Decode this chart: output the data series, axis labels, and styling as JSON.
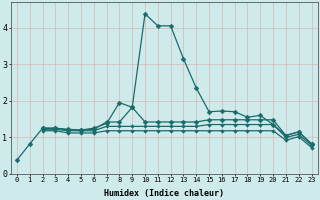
{
  "xlabel": "Humidex (Indice chaleur)",
  "bg_color": "#ceeaea",
  "grid_color": "#d4b8b8",
  "line_color": "#1a6b6b",
  "xlim": [
    -0.5,
    23.5
  ],
  "ylim": [
    0,
    4.7
  ],
  "yticks": [
    0,
    1,
    2,
    3,
    4
  ],
  "xticks": [
    0,
    1,
    2,
    3,
    4,
    5,
    6,
    7,
    8,
    9,
    10,
    11,
    12,
    13,
    14,
    15,
    16,
    17,
    18,
    19,
    20,
    21,
    22,
    23
  ],
  "series1_x": [
    0,
    1,
    2,
    3,
    4,
    5,
    6,
    7,
    8,
    9,
    10,
    11,
    12,
    13,
    14,
    15,
    16,
    17,
    18,
    19,
    20,
    21,
    22,
    23
  ],
  "series1_y": [
    0.38,
    0.82,
    1.25,
    1.25,
    1.2,
    1.2,
    1.25,
    1.38,
    1.95,
    1.82,
    4.38,
    4.05,
    4.05,
    3.15,
    2.35,
    1.7,
    1.72,
    1.7,
    1.55,
    1.6,
    1.35,
    1.05,
    1.15,
    0.82
  ],
  "series2_x": [
    2,
    3,
    4,
    5,
    6,
    7,
    8,
    9,
    10,
    11,
    12,
    13,
    14,
    15,
    16,
    17,
    18,
    19,
    20,
    21,
    22,
    23
  ],
  "series2_y": [
    1.25,
    1.25,
    1.22,
    1.2,
    1.22,
    1.42,
    1.42,
    1.82,
    1.42,
    1.42,
    1.42,
    1.42,
    1.42,
    1.48,
    1.48,
    1.48,
    1.48,
    1.48,
    1.48,
    1.05,
    1.15,
    0.82
  ],
  "series3_x": [
    2,
    3,
    4,
    5,
    6,
    7,
    8,
    9,
    10,
    11,
    12,
    13,
    14,
    15,
    16,
    17,
    18,
    19,
    20,
    21,
    22,
    23
  ],
  "series3_y": [
    1.22,
    1.22,
    1.18,
    1.18,
    1.18,
    1.3,
    1.3,
    1.3,
    1.3,
    1.3,
    1.3,
    1.3,
    1.3,
    1.35,
    1.35,
    1.35,
    1.35,
    1.35,
    1.35,
    1.0,
    1.08,
    0.78
  ],
  "series4_x": [
    2,
    3,
    4,
    5,
    6,
    7,
    8,
    9,
    10,
    11,
    12,
    13,
    14,
    15,
    16,
    17,
    18,
    19,
    20,
    21,
    22,
    23
  ],
  "series4_y": [
    1.18,
    1.18,
    1.12,
    1.12,
    1.12,
    1.18,
    1.18,
    1.18,
    1.18,
    1.18,
    1.18,
    1.18,
    1.18,
    1.18,
    1.18,
    1.18,
    1.18,
    1.18,
    1.18,
    0.92,
    1.02,
    0.72
  ]
}
